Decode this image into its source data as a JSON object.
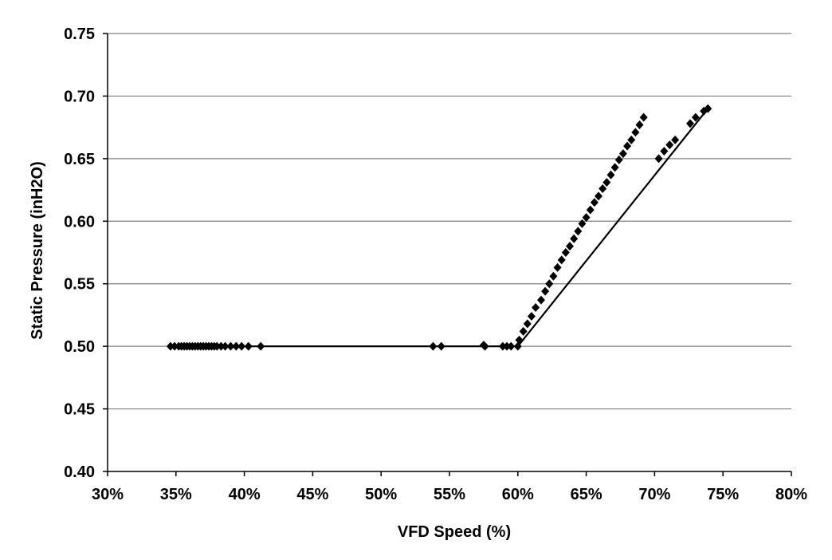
{
  "chart_data": {
    "type": "scatter",
    "title": "",
    "xlabel": "VFD Speed (%)",
    "ylabel": "Static Pressure (inH2O)",
    "xlim": [
      0.3,
      0.8
    ],
    "ylim": [
      0.4,
      0.75
    ],
    "x_ticks": [
      "30%",
      "35%",
      "40%",
      "45%",
      "50%",
      "55%",
      "60%",
      "65%",
      "70%",
      "75%",
      "80%"
    ],
    "y_ticks": [
      "0.40",
      "0.45",
      "0.50",
      "0.55",
      "0.60",
      "0.65",
      "0.70",
      "0.75"
    ],
    "grid": "horizontal",
    "legend": "none",
    "marker": "diamond",
    "colors": {
      "marker": "#000000",
      "line": "#000000",
      "grid": "#808080",
      "background": "#ffffff"
    },
    "series": [
      {
        "x": [
          0.346,
          0.349,
          0.352,
          0.354,
          0.356,
          0.358,
          0.36,
          0.362,
          0.364,
          0.366,
          0.368,
          0.37,
          0.372,
          0.374,
          0.376,
          0.378,
          0.38,
          0.383,
          0.386,
          0.39,
          0.394,
          0.398,
          0.403,
          0.412,
          0.538,
          0.544,
          0.575,
          0.576,
          0.589,
          0.592,
          0.595,
          0.6,
          0.601,
          0.604,
          0.607,
          0.61,
          0.613,
          0.617,
          0.62,
          0.623,
          0.626,
          0.629,
          0.632,
          0.635,
          0.638,
          0.641,
          0.644,
          0.647,
          0.65,
          0.653,
          0.656,
          0.659,
          0.662,
          0.665,
          0.668,
          0.671,
          0.674,
          0.677,
          0.68,
          0.683,
          0.686,
          0.689,
          0.692,
          0.703,
          0.707,
          0.711,
          0.715,
          0.726,
          0.73,
          0.736,
          0.739
        ],
        "y": [
          0.5,
          0.5,
          0.5,
          0.5,
          0.5,
          0.5,
          0.5,
          0.5,
          0.5,
          0.5,
          0.5,
          0.5,
          0.5,
          0.5,
          0.5,
          0.5,
          0.5,
          0.5,
          0.5,
          0.5,
          0.5,
          0.5,
          0.5,
          0.5,
          0.5,
          0.5,
          0.501,
          0.5,
          0.5,
          0.5,
          0.5,
          0.5,
          0.505,
          0.512,
          0.518,
          0.524,
          0.531,
          0.537,
          0.544,
          0.55,
          0.556,
          0.563,
          0.569,
          0.575,
          0.58,
          0.586,
          0.592,
          0.598,
          0.603,
          0.609,
          0.615,
          0.62,
          0.626,
          0.631,
          0.637,
          0.643,
          0.649,
          0.654,
          0.66,
          0.665,
          0.671,
          0.677,
          0.683,
          0.65,
          0.656,
          0.661,
          0.665,
          0.678,
          0.683,
          0.688,
          0.69
        ]
      }
    ],
    "fit_line": {
      "x": [
        0.346,
        0.6,
        0.739
      ],
      "y": [
        0.5,
        0.5,
        0.69
      ]
    }
  }
}
